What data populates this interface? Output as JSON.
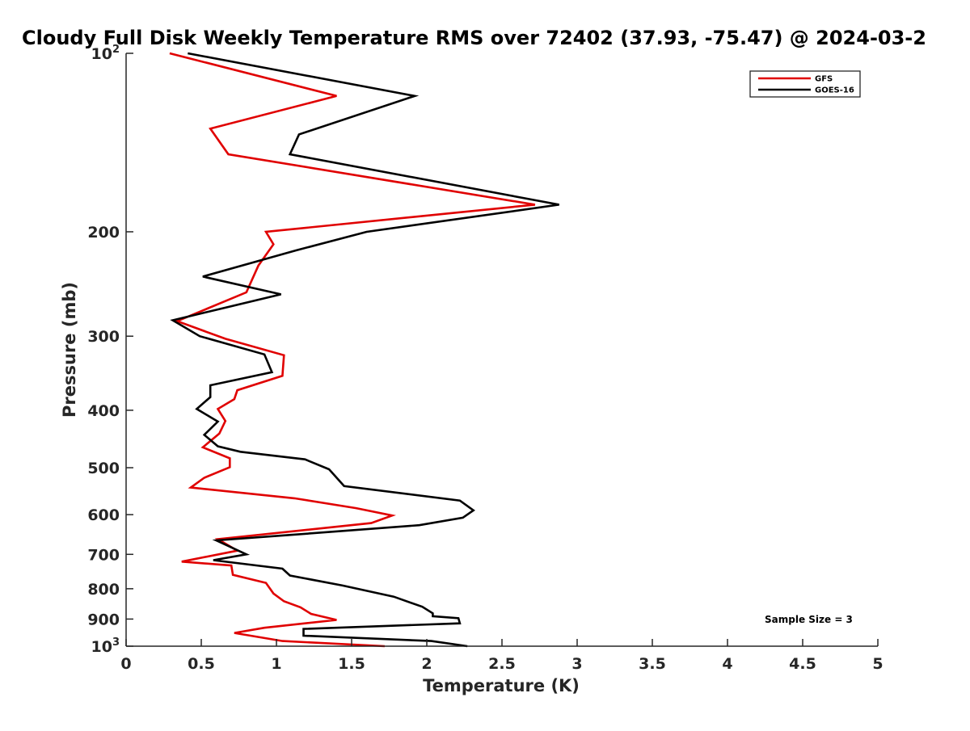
{
  "chart_data": {
    "type": "line",
    "title": "Cloudy Full Disk Weekly Temperature RMS over 72402 (37.93, -75.47) @ 2024-03-2",
    "xlabel": "Temperature (K)",
    "ylabel": "Pressure (mb)",
    "xlim": [
      0,
      5
    ],
    "ylim": [
      100,
      1000
    ],
    "y_scale": "log",
    "y_reversed": true,
    "grid": false,
    "legend_position": "top-right",
    "x_ticks": [
      {
        "value": 0,
        "label": "0"
      },
      {
        "value": 0.5,
        "label": "0.5"
      },
      {
        "value": 1,
        "label": "1"
      },
      {
        "value": 1.5,
        "label": "1.5"
      },
      {
        "value": 2,
        "label": "2"
      },
      {
        "value": 2.5,
        "label": "2.5"
      },
      {
        "value": 3,
        "label": "3"
      },
      {
        "value": 3.5,
        "label": "3.5"
      },
      {
        "value": 4,
        "label": "4"
      },
      {
        "value": 4.5,
        "label": "4.5"
      },
      {
        "value": 5,
        "label": "5"
      }
    ],
    "y_ticks": [
      {
        "value": 100,
        "label": "10",
        "sup": "2"
      },
      {
        "value": 200,
        "label": "200",
        "sup": ""
      },
      {
        "value": 300,
        "label": "300",
        "sup": ""
      },
      {
        "value": 400,
        "label": "400",
        "sup": ""
      },
      {
        "value": 500,
        "label": "500",
        "sup": ""
      },
      {
        "value": 600,
        "label": "600",
        "sup": ""
      },
      {
        "value": 700,
        "label": "700",
        "sup": ""
      },
      {
        "value": 800,
        "label": "800",
        "sup": ""
      },
      {
        "value": 900,
        "label": "900",
        "sup": ""
      },
      {
        "value": 1000,
        "label": "10",
        "sup": "3"
      }
    ],
    "annotation": "Sample Size = 3",
    "series": [
      {
        "name": "GFS",
        "color": "#e00000",
        "points": [
          [
            0.29,
            100
          ],
          [
            1.4,
            118
          ],
          [
            0.56,
            134
          ],
          [
            0.68,
            148
          ],
          [
            2.72,
            180
          ],
          [
            0.93,
            200
          ],
          [
            0.98,
            210
          ],
          [
            0.88,
            228
          ],
          [
            0.8,
            253
          ],
          [
            0.34,
            283
          ],
          [
            0.66,
            303
          ],
          [
            1.05,
            323
          ],
          [
            1.04,
            350
          ],
          [
            0.74,
            370
          ],
          [
            0.72,
            383
          ],
          [
            0.61,
            398
          ],
          [
            0.66,
            417
          ],
          [
            0.62,
            438
          ],
          [
            0.51,
            462
          ],
          [
            0.69,
            482
          ],
          [
            0.69,
            499
          ],
          [
            0.52,
            520
          ],
          [
            0.43,
            540
          ],
          [
            1.12,
            563
          ],
          [
            1.53,
            585
          ],
          [
            1.77,
            602
          ],
          [
            1.63,
            620
          ],
          [
            0.61,
            660
          ],
          [
            0.74,
            690
          ],
          [
            0.37,
            720
          ],
          [
            0.7,
            731
          ],
          [
            0.71,
            758
          ],
          [
            0.93,
            782
          ],
          [
            0.98,
            815
          ],
          [
            1.05,
            840
          ],
          [
            1.16,
            860
          ],
          [
            1.23,
            882
          ],
          [
            1.4,
            903
          ],
          [
            0.92,
            931
          ],
          [
            0.72,
            950
          ],
          [
            1.04,
            980
          ],
          [
            1.72,
            1000
          ]
        ]
      },
      {
        "name": "GOES-16",
        "color": "#000000",
        "points": [
          [
            0.41,
            100
          ],
          [
            1.92,
            118
          ],
          [
            1.15,
            137
          ],
          [
            1.09,
            148
          ],
          [
            2.88,
            180
          ],
          [
            1.6,
            200
          ],
          [
            1.13,
            215
          ],
          [
            0.51,
            238
          ],
          [
            1.03,
            255
          ],
          [
            0.31,
            282
          ],
          [
            0.49,
            300
          ],
          [
            0.92,
            322
          ],
          [
            0.97,
            345
          ],
          [
            0.56,
            363
          ],
          [
            0.56,
            380
          ],
          [
            0.47,
            398
          ],
          [
            0.61,
            418
          ],
          [
            0.52,
            440
          ],
          [
            0.61,
            460
          ],
          [
            0.76,
            470
          ],
          [
            1.19,
            484
          ],
          [
            1.35,
            503
          ],
          [
            1.45,
            537
          ],
          [
            2.22,
            568
          ],
          [
            2.31,
            590
          ],
          [
            2.24,
            607
          ],
          [
            1.95,
            625
          ],
          [
            1.06,
            650
          ],
          [
            0.6,
            663
          ],
          [
            0.8,
            700
          ],
          [
            0.58,
            716
          ],
          [
            1.04,
            740
          ],
          [
            1.09,
            760
          ],
          [
            1.44,
            790
          ],
          [
            1.78,
            825
          ],
          [
            1.97,
            858
          ],
          [
            2.04,
            880
          ],
          [
            2.04,
            890
          ],
          [
            2.21,
            897
          ],
          [
            2.22,
            915
          ],
          [
            1.18,
            935
          ],
          [
            1.18,
            960
          ],
          [
            2.03,
            980
          ],
          [
            2.27,
            1000
          ]
        ]
      }
    ]
  }
}
